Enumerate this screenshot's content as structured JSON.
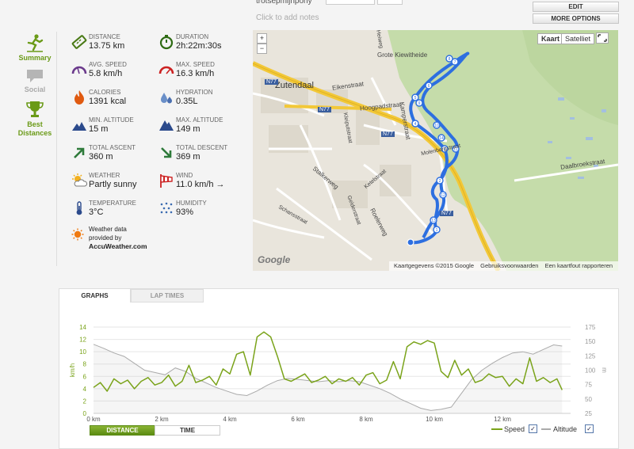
{
  "header": {
    "user_text": "trotsepmijnpony",
    "notes_placeholder": "Click to add notes",
    "edit_label": "EDIT",
    "more_options_label": "MORE OPTIONS"
  },
  "tabs": [
    {
      "label": "Summary",
      "active": true
    },
    {
      "label": "Social",
      "active": false
    },
    {
      "label": "Best Distances",
      "active": false
    }
  ],
  "stats": {
    "distance": {
      "label": "DISTANCE",
      "value": "13.75 km"
    },
    "duration": {
      "label": "DURATION",
      "value": "2h:22m:30s"
    },
    "avg_speed": {
      "label": "AVG. SPEED",
      "value": "5.8 km/h"
    },
    "max_speed": {
      "label": "MAX. SPEED",
      "value": "16.3 km/h"
    },
    "calories": {
      "label": "CALORIES",
      "value": "1391 kcal"
    },
    "hydration": {
      "label": "HYDRATION",
      "value": "0.35L"
    },
    "min_altitude": {
      "label": "MIN. ALTITUDE",
      "value": "15 m"
    },
    "max_altitude": {
      "label": "MAX. ALTITUDE",
      "value": "149 m"
    },
    "total_ascent": {
      "label": "TOTAL ASCENT",
      "value": "360 m"
    },
    "total_descent": {
      "label": "TOTAL DESCENT",
      "value": "369 m"
    },
    "weather": {
      "label": "WEATHER",
      "value": "Partly sunny"
    },
    "wind": {
      "label": "WIND",
      "value": "11.0 km/h →"
    },
    "temperature": {
      "label": "TEMPERATURE",
      "value": "3°C"
    },
    "humidity": {
      "label": "HUMIDITY",
      "value": "93%"
    }
  },
  "weather_note": {
    "line1": "Weather data",
    "line2": "provided by",
    "provider": "AccuWeather.com"
  },
  "map": {
    "zoom_in": "+",
    "zoom_out": "−",
    "type_map": "Kaart",
    "type_satellite": "Satelliet",
    "labels": {
      "zutendaal": "Zutendaal",
      "grote_kiewitheide": "Grote Kiewitheide",
      "n77_a": "N77",
      "n77_b": "N77",
      "n77_c": "N77",
      "n77_d": "N77",
      "hoogpadstraat": "Hoogpadstraat",
      "kamperstraat": "Kamperstraat",
      "eikenstraat": "Eikenstraat",
      "stalkerweg": "Stalkerweg",
      "roelerweg": "Roelerweg",
      "daalbroekstraat": "Daalbroekstraat",
      "molenbergstraat": "Molenbergstraat",
      "schansstraat": "Schansstraat",
      "gelderstraat": "Gelderstraat",
      "kleiputstraat": "Kleiputstraat",
      "heiweg": "Heiweg",
      "ketelstraat": "Ketelstraat"
    },
    "footer": {
      "copyright": "Kaartgegevens ©2015 Google",
      "terms": "Gebruiksvoorwaarden",
      "report": "Een kaartfout rapporteren"
    },
    "google_logo": "Google",
    "markers": [
      "1",
      "2",
      "3",
      "4",
      "5",
      "6",
      "7",
      "8",
      "9",
      "10",
      "11",
      "12",
      "13",
      "14"
    ]
  },
  "graph_tabs": {
    "graphs": "GRAPHS",
    "lap_times": "LAP TIMES"
  },
  "chart_data": {
    "type": "line",
    "xlabel": "",
    "x_ticks": [
      "0 km",
      "2 km",
      "4 km",
      "6 km",
      "8 km",
      "10 km",
      "12 km"
    ],
    "xlim": [
      0,
      14
    ],
    "ylabel": "km/h",
    "ylim": [
      0,
      14
    ],
    "y_ticks": [
      "0",
      "2",
      "4",
      "6",
      "8",
      "10",
      "12",
      "14"
    ],
    "y2label": "m",
    "y2lim": [
      25,
      175
    ],
    "y2_ticks": [
      "25",
      "50",
      "75",
      "100",
      "125",
      "150",
      "175"
    ],
    "grid": "horizontal",
    "series": [
      {
        "name": "Speed",
        "color": "#7aa31a",
        "x": [
          0.0,
          0.2,
          0.4,
          0.6,
          0.8,
          1.0,
          1.2,
          1.4,
          1.6,
          1.8,
          2.0,
          2.2,
          2.4,
          2.6,
          2.8,
          3.0,
          3.2,
          3.4,
          3.6,
          3.8,
          4.0,
          4.2,
          4.4,
          4.6,
          4.8,
          5.0,
          5.2,
          5.4,
          5.6,
          5.8,
          6.0,
          6.2,
          6.4,
          6.6,
          6.8,
          7.0,
          7.2,
          7.4,
          7.6,
          7.8,
          8.0,
          8.2,
          8.4,
          8.6,
          8.8,
          9.0,
          9.2,
          9.4,
          9.6,
          9.8,
          10.0,
          10.2,
          10.4,
          10.6,
          10.8,
          11.0,
          11.2,
          11.4,
          11.6,
          11.8,
          12.0,
          12.2,
          12.4,
          12.6,
          12.8,
          13.0,
          13.2,
          13.4,
          13.6,
          13.75
        ],
        "values": [
          4.2,
          5.0,
          3.6,
          5.6,
          4.8,
          5.4,
          4.0,
          5.2,
          5.8,
          4.6,
          5.0,
          6.2,
          4.4,
          5.2,
          7.8,
          5.0,
          5.4,
          6.0,
          4.6,
          7.2,
          6.4,
          9.6,
          10.0,
          6.2,
          12.4,
          13.2,
          12.4,
          9.2,
          5.6,
          5.2,
          5.8,
          6.4,
          5.0,
          5.4,
          6.0,
          4.8,
          5.6,
          5.2,
          5.8,
          4.6,
          6.2,
          6.6,
          4.8,
          5.4,
          8.4,
          5.6,
          10.8,
          11.6,
          11.2,
          11.8,
          11.4,
          6.8,
          5.8,
          8.6,
          6.2,
          7.2,
          5.0,
          5.4,
          6.4,
          5.8,
          6.0,
          4.4,
          5.6,
          4.8,
          9.0,
          5.2,
          5.8,
          5.0,
          5.6,
          3.8
        ]
      },
      {
        "name": "Altitude",
        "color": "#aaaaaa",
        "x": [
          0.0,
          0.3,
          0.6,
          0.9,
          1.2,
          1.5,
          1.8,
          2.1,
          2.4,
          2.7,
          3.0,
          3.3,
          3.6,
          3.9,
          4.2,
          4.5,
          4.8,
          5.1,
          5.4,
          5.7,
          6.0,
          6.3,
          6.6,
          6.9,
          7.2,
          7.5,
          7.8,
          8.1,
          8.4,
          8.7,
          9.0,
          9.3,
          9.6,
          9.9,
          10.2,
          10.5,
          10.8,
          11.1,
          11.4,
          11.7,
          12.0,
          12.3,
          12.6,
          12.9,
          13.2,
          13.5,
          13.75
        ],
        "values": [
          145,
          138,
          130,
          124,
          112,
          100,
          96,
          92,
          104,
          98,
          86,
          78,
          70,
          64,
          58,
          56,
          64,
          74,
          82,
          86,
          84,
          82,
          80,
          82,
          80,
          82,
          80,
          74,
          68,
          60,
          50,
          42,
          34,
          30,
          32,
          36,
          60,
          84,
          100,
          112,
          122,
          130,
          132,
          128,
          136,
          144,
          142
        ]
      }
    ],
    "legend": "bottom-right",
    "x_mode_toggle": {
      "distance_label": "DISTANCE",
      "time_label": "TIME",
      "active": "DISTANCE"
    },
    "legend_labels": {
      "speed": "Speed",
      "altitude": "Altitude"
    },
    "legend_checked": "✓"
  }
}
